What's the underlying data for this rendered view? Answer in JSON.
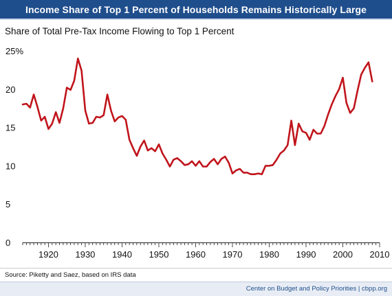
{
  "header": {
    "title": "Income Share of Top 1 Percent of Households Remains Historically Large",
    "subtitle": "Share of Total Pre-Tax Income Flowing to Top 1 Percent"
  },
  "footer": {
    "source": "Source: Piketty and Saez, based on IRS data",
    "credit": "Center on Budget and Policy Priorities | cbpp.org"
  },
  "colors": {
    "header_bg": "#1f4e8c",
    "line": "#c0141b",
    "credit_text": "#1f4e8c"
  },
  "chart_data": {
    "type": "line",
    "title": "Income Share of Top 1 Percent of Households Remains Historically Large",
    "ylabel": "Share of Total Pre-Tax Income Flowing to Top 1 Percent",
    "xlabel": "",
    "xlim": [
      1913,
      2010
    ],
    "ylim": [
      0,
      25
    ],
    "grid": false,
    "x_ticks": [
      1920,
      1930,
      1940,
      1950,
      1960,
      1970,
      1980,
      1990,
      2000,
      2010
    ],
    "x_tick_labels": [
      "1920",
      "1930",
      "1940",
      "1950",
      "1960",
      "1970",
      "1980",
      "1990",
      "2000",
      "2010"
    ],
    "y_ticks": [
      0,
      5,
      10,
      15,
      20,
      25
    ],
    "y_tick_labels": [
      "0",
      "5",
      "10",
      "15",
      "20",
      "25%"
    ],
    "series": [
      {
        "x": [
          1913,
          1914,
          1915,
          1916,
          1917,
          1918,
          1919,
          1920,
          1921,
          1922,
          1923,
          1924,
          1925,
          1926,
          1927,
          1928,
          1929,
          1930,
          1931,
          1932,
          1933,
          1934,
          1935,
          1936,
          1937,
          1938,
          1939,
          1940,
          1941,
          1942,
          1943,
          1944,
          1945,
          1946,
          1947,
          1948,
          1949,
          1950,
          1951,
          1952,
          1953,
          1954,
          1955,
          1956,
          1957,
          1958,
          1959,
          1960,
          1961,
          1962,
          1963,
          1964,
          1965,
          1966,
          1967,
          1968,
          1969,
          1970,
          1971,
          1972,
          1973,
          1974,
          1975,
          1976,
          1977,
          1978,
          1979,
          1980,
          1981,
          1982,
          1983,
          1984,
          1985,
          1986,
          1987,
          1988,
          1989,
          1990,
          1991,
          1992,
          1993,
          1994,
          1995,
          1996,
          1997,
          1998,
          1999,
          2000,
          2001,
          2002,
          2003,
          2004,
          2005,
          2006,
          2007,
          2008
        ],
        "values": [
          18.0,
          18.1,
          17.6,
          19.3,
          17.7,
          15.9,
          16.4,
          14.8,
          15.5,
          17.0,
          15.6,
          17.5,
          20.2,
          19.9,
          21.1,
          24.0,
          22.4,
          17.2,
          15.5,
          15.6,
          16.4,
          16.3,
          16.6,
          19.3,
          17.2,
          15.8,
          16.3,
          16.5,
          16.0,
          13.4,
          12.3,
          11.3,
          12.5,
          13.3,
          12.0,
          12.3,
          11.9,
          12.8,
          11.6,
          10.8,
          9.9,
          10.8,
          11.0,
          10.6,
          10.1,
          10.2,
          10.6,
          10.0,
          10.6,
          9.9,
          9.9,
          10.5,
          10.9,
          10.2,
          10.9,
          11.2,
          10.4,
          9.0,
          9.4,
          9.6,
          9.1,
          9.1,
          8.9,
          8.9,
          9.0,
          8.9,
          10.0,
          10.0,
          10.1,
          10.8,
          11.6,
          12.0,
          12.7,
          15.9,
          12.7,
          15.5,
          14.5,
          14.3,
          13.4,
          14.7,
          14.2,
          14.2,
          15.2,
          16.7,
          18.0,
          19.1,
          20.0,
          21.5,
          18.2,
          16.9,
          17.5,
          19.8,
          21.9,
          22.8,
          23.5,
          21.0
        ]
      }
    ]
  }
}
